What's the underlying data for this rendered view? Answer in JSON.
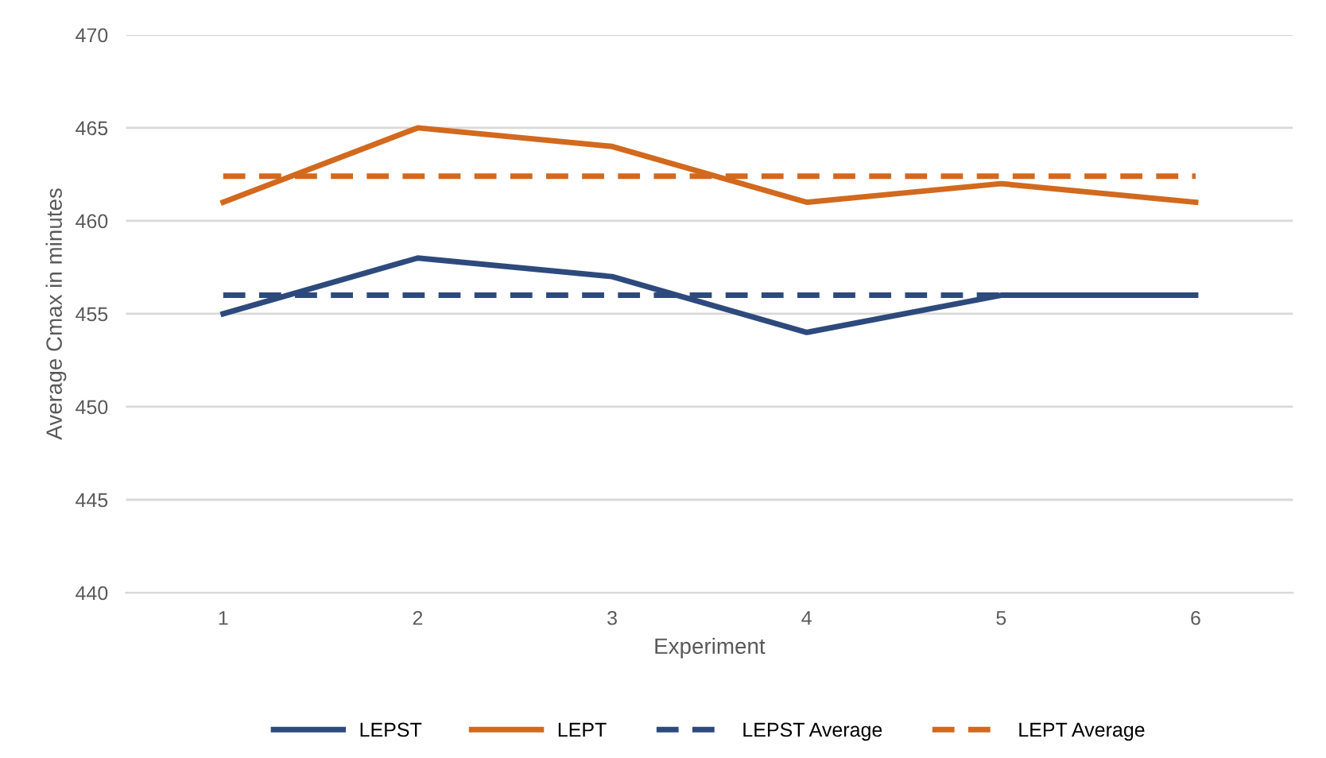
{
  "chart_data": {
    "type": "line",
    "xlabel": "Experiment",
    "ylabel": "Average Cmax in minutes",
    "categories": [
      "1",
      "2",
      "3",
      "4",
      "5",
      "6"
    ],
    "series": [
      {
        "name": "LEPST",
        "color": "#2e4a7d",
        "values": [
          455,
          458,
          457,
          454,
          456,
          456
        ]
      },
      {
        "name": "LEPT",
        "color": "#d2691e",
        "values": [
          461,
          465,
          464,
          461,
          462,
          461
        ]
      },
      {
        "name": "LEPST Average",
        "color": "#2e4a7d",
        "values": [
          456,
          456,
          456,
          456,
          456,
          456
        ],
        "line_style": "dashed"
      },
      {
        "name": "LEPT Average",
        "color": "#d2691e",
        "values": [
          462.4,
          462.4,
          462.4,
          462.4,
          462.4,
          462.4
        ],
        "line_style": "dashed"
      }
    ],
    "ylim": [
      440,
      470
    ],
    "yticks": [
      440,
      445,
      450,
      455,
      460,
      465,
      470
    ],
    "grid": "y",
    "legend": "bottom",
    "marker": "none"
  }
}
